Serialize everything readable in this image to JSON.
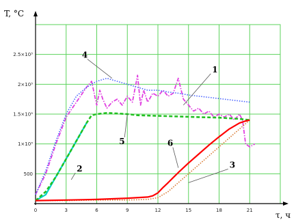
{
  "chart_data": {
    "type": "line",
    "xlabel": "τ, ч",
    "ylabel": "T, °C",
    "xlim": [
      0,
      24
    ],
    "ylim": [
      0,
      3000
    ],
    "grid": true,
    "legend": "none",
    "x_ticks": [
      0,
      3,
      6,
      9,
      12,
      15,
      18,
      21
    ],
    "x_tick_labels": [
      "0",
      "3",
      "6",
      "9",
      "12",
      "15",
      "18",
      "21"
    ],
    "y_ticks": [
      500,
      1000,
      1500,
      2000,
      2500
    ],
    "y_tick_labels": [
      "500",
      "1×10³",
      "1.5×10³",
      "2×10³",
      "2.5×10³"
    ],
    "series": [
      {
        "id": "1",
        "color": "#e040e0",
        "style": "dash-dot",
        "x": [
          0,
          1,
          2,
          3,
          4,
          5,
          5.5,
          6,
          6.3,
          6.6,
          7,
          7.5,
          8,
          8.5,
          9,
          9.5,
          10,
          10.3,
          10.6,
          11,
          11.5,
          12,
          12.5,
          13,
          13.5,
          14,
          14.5,
          15,
          15.5,
          16,
          16.5,
          17,
          17.5,
          18,
          18.5,
          19,
          19.5,
          20,
          20.3,
          20.6,
          21,
          21.5
        ],
        "y": [
          150,
          500,
          1000,
          1450,
          1700,
          1950,
          2050,
          1650,
          1900,
          1750,
          1600,
          1700,
          1750,
          1650,
          1800,
          1700,
          2150,
          1650,
          1900,
          1700,
          1850,
          1800,
          1900,
          1800,
          1850,
          2100,
          1750,
          1650,
          1550,
          1600,
          1500,
          1550,
          1450,
          1500,
          1450,
          1500,
          1400,
          1500,
          1400,
          1000,
          950,
          1000
        ]
      },
      {
        "id": "2",
        "color": "#00d2c8",
        "style": "solid",
        "x": [
          0,
          1,
          2,
          3,
          4,
          5
        ],
        "y": [
          50,
          150,
          450,
          750,
          1050,
          1350
        ]
      },
      {
        "id": "3",
        "color": "#d87830",
        "style": "dotted",
        "x": [
          0,
          3,
          6,
          9,
          11,
          12,
          13,
          14,
          15,
          16,
          17,
          18,
          19,
          20,
          21
        ],
        "y": [
          50,
          50,
          60,
          60,
          70,
          100,
          200,
          350,
          500,
          650,
          800,
          950,
          1100,
          1250,
          1400
        ]
      },
      {
        "id": "4",
        "color": "#4a64ff",
        "style": "dotted",
        "x": [
          0,
          1,
          2,
          3,
          4,
          5,
          6,
          7,
          8,
          9,
          10,
          11,
          12,
          13,
          14,
          15,
          16,
          17,
          18,
          19,
          20,
          21
        ],
        "y": [
          150,
          550,
          1050,
          1500,
          1800,
          1950,
          2050,
          2100,
          2050,
          2000,
          1950,
          1900,
          1900,
          1870,
          1850,
          1820,
          1800,
          1780,
          1760,
          1740,
          1720,
          1700
        ]
      },
      {
        "id": "5",
        "color": "#22c022",
        "style": "dashed",
        "x": [
          0,
          1,
          2,
          3,
          4,
          5,
          5.5,
          6,
          7,
          8,
          9,
          10,
          12,
          14,
          16,
          18,
          20,
          21
        ],
        "y": [
          50,
          200,
          450,
          750,
          1050,
          1350,
          1480,
          1500,
          1520,
          1510,
          1500,
          1480,
          1470,
          1460,
          1450,
          1440,
          1420,
          1400
        ]
      },
      {
        "id": "6",
        "color": "#ff0000",
        "style": "solid",
        "x": [
          0,
          3,
          6,
          9,
          11,
          11.5,
          12,
          12.5,
          13,
          14,
          15,
          16,
          17,
          18,
          19,
          20,
          20.5,
          21
        ],
        "y": [
          50,
          60,
          70,
          90,
          110,
          130,
          180,
          270,
          350,
          520,
          680,
          830,
          980,
          1120,
          1250,
          1350,
          1380,
          1400
        ]
      }
    ],
    "annotations": [
      {
        "label": "4",
        "x": 7.5,
        "y": 2100
      },
      {
        "label": "1",
        "x": 14.5,
        "y": 1650
      },
      {
        "label": "5",
        "x": 9,
        "y": 1500
      },
      {
        "label": "2",
        "x": 3.5,
        "y": 400
      },
      {
        "label": "6",
        "x": 14,
        "y": 600
      },
      {
        "label": "3",
        "x": 15,
        "y": 350
      }
    ]
  }
}
